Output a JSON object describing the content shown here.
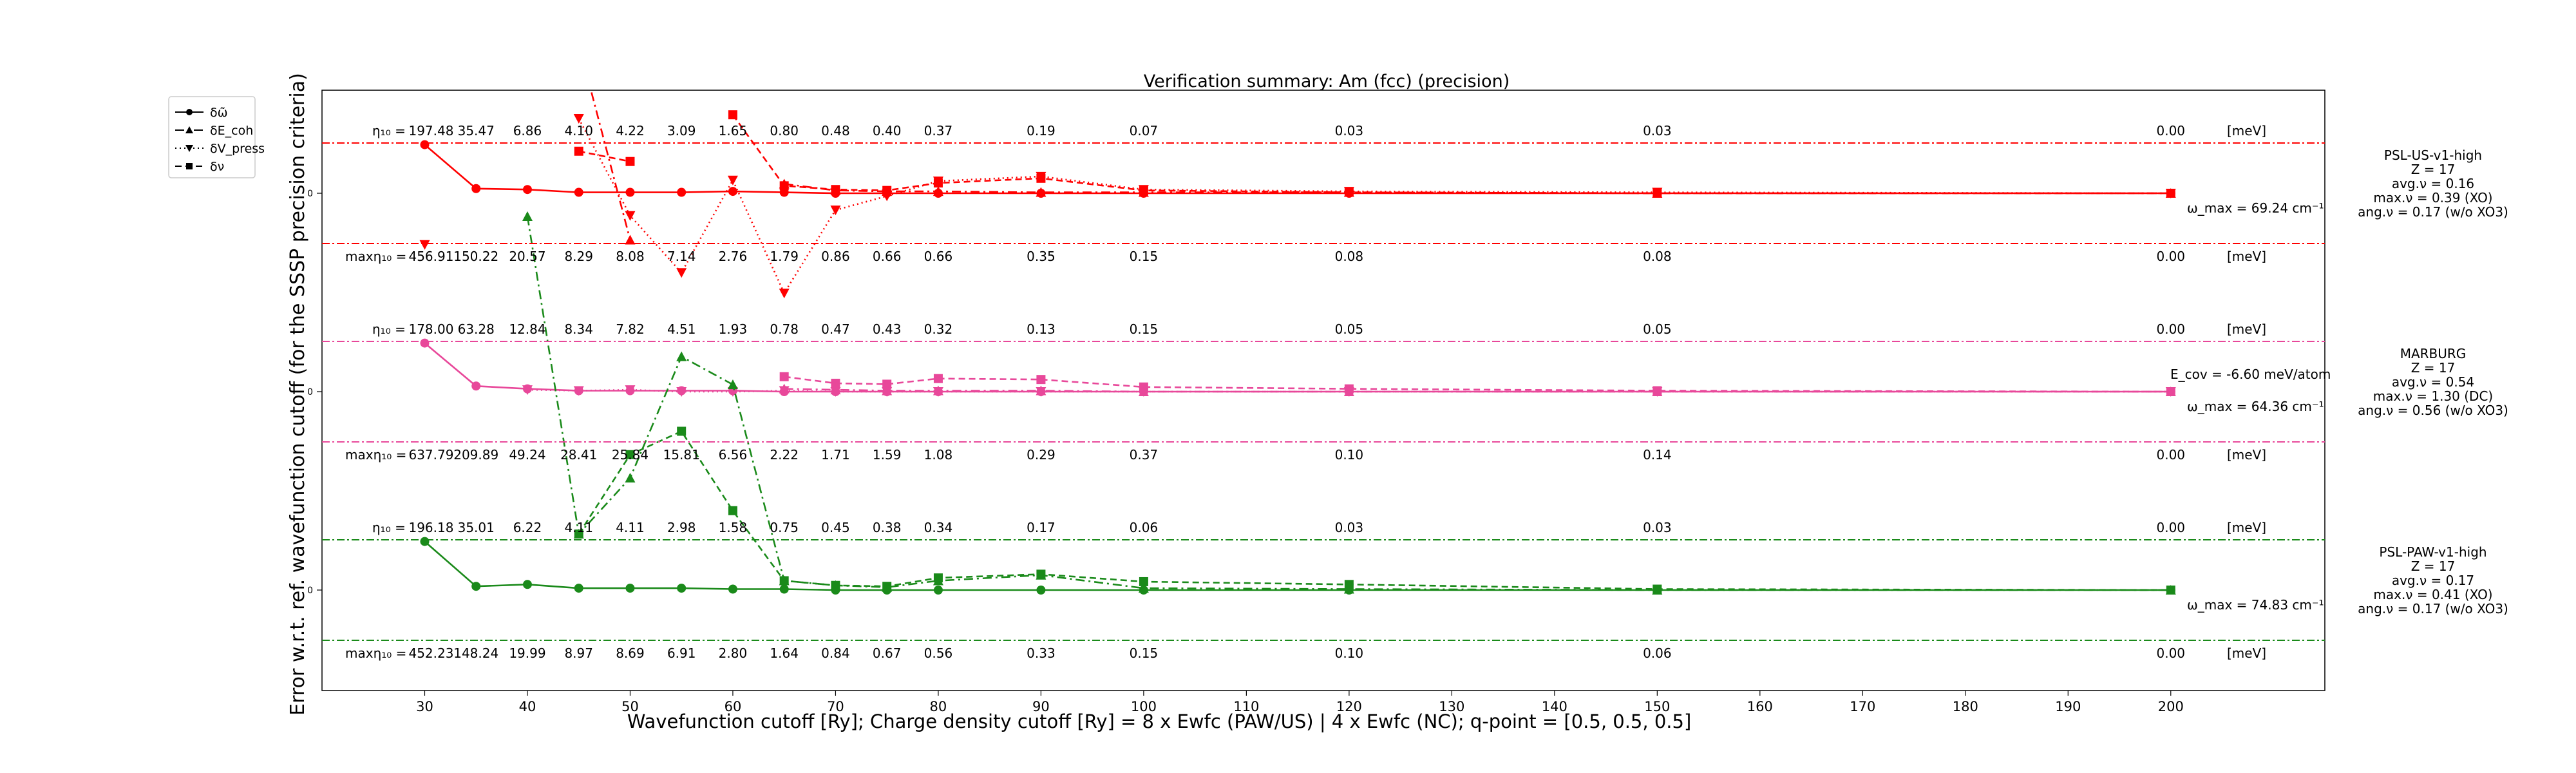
{
  "chart_data": {
    "type": "line",
    "title": "Verification summary: Am (fcc) (precision)",
    "xlabel": "Wavefunction cutoff [Ry]; Charge density cutoff [Ry] = 8 x Ewfc (PAW/US) | 4 x Ewfc (NC); q-point = [0.5, 0.5, 0.5]",
    "ylabel": "Error w.r.t. ref. wavefunction cutoff (for the SSSP precision criteria)",
    "xlim": [
      20,
      215
    ],
    "x_ticks": [
      30,
      40,
      50,
      60,
      70,
      80,
      90,
      100,
      110,
      120,
      130,
      140,
      150,
      160,
      170,
      180,
      190,
      200
    ],
    "y_tick_label": "0",
    "x": [
      30,
      35,
      40,
      45,
      50,
      55,
      60,
      65,
      70,
      75,
      80,
      90,
      100,
      120,
      150,
      200
    ],
    "legend": {
      "placement": "upper-left-outside",
      "entries": [
        {
          "label": "δω̃",
          "marker": "circle",
          "linestyle": "solid"
        },
        {
          "label": "δE_coh",
          "marker": "triangle",
          "linestyle": "dashdot"
        },
        {
          "label": "δV_press",
          "marker": "triangle-down",
          "linestyle": "dotted"
        },
        {
          "label": "δν",
          "marker": "square",
          "linestyle": "dashed"
        }
      ]
    },
    "groups": [
      {
        "name": "PSL-US-v1-high",
        "color": "#ff0000",
        "info": [
          "PSL-US-v1-high",
          "Z = 17",
          "avg.ν = 0.16",
          "max.ν = 0.39 (XO)",
          "ang.ν = 0.17 (w/o XO3)"
        ],
        "omega_label": "ω_max = 69.24 cm⁻¹",
        "ecov_label": "",
        "eta_prefix": "η₁₀ =",
        "eta_values": [
          "197.48",
          "35.47",
          "6.86",
          "4.10",
          "4.22",
          "3.09",
          "1.65",
          "0.80",
          "0.48",
          "0.40",
          "0.37",
          "0.19",
          "0.07",
          "0.03",
          "0.03",
          "0.00"
        ],
        "max_prefix": "maxη₁₀ =",
        "max_values": [
          "456.91",
          "150.22",
          "20.57",
          "8.29",
          "8.08",
          "7.14",
          "2.76",
          "1.79",
          "0.86",
          "0.66",
          "0.66",
          "0.35",
          "0.15",
          "0.08",
          "0.08",
          "0.00"
        ],
        "unit": "[meV]",
        "series": [
          {
            "name": "δω̃",
            "style": "solid",
            "marker": "circle",
            "values": [
              0.52,
              0.05,
              0.04,
              0.01,
              0.01,
              0.01,
              0.02,
              0.01,
              0.0,
              0.0,
              0.0,
              0.0,
              0.0,
              0.0,
              0.0,
              0.0
            ]
          },
          {
            "name": "δE_coh",
            "style": "dashdot",
            "marker": "triangle",
            "values": [
              null,
              null,
              4.0,
              1.6,
              -0.5,
              null,
              null,
              0.1,
              0.03,
              0.02,
              0.02,
              0.01,
              0.01,
              0.01,
              0.0,
              0.0
            ]
          },
          {
            "name": "δV_press",
            "style": "dotted",
            "marker": "triangle-down",
            "values": [
              -0.55,
              null,
              null,
              0.8,
              -0.24,
              -0.85,
              0.14,
              -1.07,
              -0.18,
              -0.03,
              0.13,
              0.18,
              0.04,
              0.02,
              0.01,
              0.0
            ]
          },
          {
            "name": "δν",
            "style": "dashed",
            "marker": "square",
            "values": [
              null,
              null,
              null,
              0.45,
              0.34,
              null,
              0.84,
              0.08,
              0.04,
              0.03,
              0.11,
              0.16,
              0.03,
              0.01,
              0.0,
              0.0
            ]
          }
        ]
      },
      {
        "name": "MARBURG",
        "color": "#e8489a",
        "info": [
          "MARBURG",
          "Z = 17",
          "avg.ν = 0.54",
          "max.ν = 1.30 (DC)",
          "ang.ν = 0.56 (w/o XO3)"
        ],
        "omega_label": "ω_max = 64.36 cm⁻¹",
        "ecov_label": "E_cov = -6.60 meV/atom",
        "eta_prefix": "η₁₀ =",
        "eta_values": [
          "178.00",
          "63.28",
          "12.84",
          "8.34",
          "7.82",
          "4.51",
          "1.93",
          "0.78",
          "0.47",
          "0.43",
          "0.32",
          "0.13",
          "0.15",
          "0.05",
          "0.05",
          "0.00"
        ],
        "max_prefix": "maxη₁₀ =",
        "max_values": [
          "637.79",
          "209.89",
          "49.24",
          "28.41",
          "25.84",
          "15.81",
          "6.56",
          "2.22",
          "1.71",
          "1.59",
          "1.08",
          "0.29",
          "0.37",
          "0.10",
          "0.14",
          "0.00"
        ],
        "unit": "[meV]",
        "series": [
          {
            "name": "δω̃",
            "style": "solid",
            "marker": "circle",
            "values": [
              0.52,
              0.06,
              0.03,
              0.01,
              0.01,
              0.01,
              0.01,
              0.0,
              0.0,
              0.0,
              0.0,
              0.0,
              0.0,
              0.0,
              0.0,
              0.0
            ]
          },
          {
            "name": "δE_coh",
            "style": "dashdot",
            "marker": "triangle",
            "values": [
              null,
              null,
              null,
              null,
              null,
              null,
              null,
              0.03,
              0.02,
              0.01,
              0.01,
              0.01,
              0.0,
              0.0,
              0.0,
              0.0
            ]
          },
          {
            "name": "δV_press",
            "style": "dotted",
            "marker": "triangle-down",
            "values": [
              null,
              null,
              0.02,
              0.01,
              0.02,
              0.0,
              0.0,
              0.01,
              0.0,
              0.0,
              0.0,
              0.0,
              0.0,
              0.0,
              0.0,
              0.0
            ]
          },
          {
            "name": "δν",
            "style": "dashed",
            "marker": "square",
            "values": [
              null,
              null,
              null,
              null,
              null,
              null,
              null,
              0.16,
              0.09,
              0.08,
              0.14,
              0.13,
              0.05,
              0.03,
              0.01,
              0.0
            ]
          }
        ]
      },
      {
        "name": "PSL-PAW-v1-high",
        "color": "#1a8a1a",
        "info": [
          "PSL-PAW-v1-high",
          "Z = 17",
          "avg.ν = 0.17",
          "max.ν = 0.41 (XO)",
          "ang.ν = 0.17 (w/o XO3)"
        ],
        "omega_label": "ω_max = 74.83 cm⁻¹",
        "ecov_label": "",
        "eta_prefix": "η₁₀ =",
        "eta_values": [
          "196.18",
          "35.01",
          "6.22",
          "4.11",
          "4.11",
          "2.98",
          "1.58",
          "0.75",
          "0.45",
          "0.38",
          "0.34",
          "0.17",
          "0.06",
          "0.03",
          "0.03",
          "0.00"
        ],
        "max_prefix": "maxη₁₀ =",
        "max_values": [
          "452.23",
          "148.24",
          "19.99",
          "8.97",
          "8.69",
          "6.91",
          "2.80",
          "1.64",
          "0.84",
          "0.67",
          "0.56",
          "0.33",
          "0.15",
          "0.10",
          "0.06",
          "0.00"
        ],
        "unit": "[meV]",
        "series": [
          {
            "name": "δω̃",
            "style": "solid",
            "marker": "circle",
            "values": [
              0.52,
              0.04,
              0.06,
              0.02,
              0.02,
              0.02,
              0.01,
              0.01,
              0.0,
              0.0,
              0.0,
              0.0,
              0.0,
              0.0,
              0.0,
              0.0
            ]
          },
          {
            "name": "δE_coh",
            "style": "dashdot",
            "marker": "triangle",
            "values": [
              null,
              null,
              4.0,
              0.6,
              1.2,
              2.5,
              2.2,
              0.1,
              0.05,
              0.03,
              0.1,
              0.16,
              0.02,
              0.01,
              0.0,
              0.0
            ]
          },
          {
            "name": "δV_press",
            "style": "dotted",
            "marker": "triangle-down",
            "values": [
              null,
              null,
              null,
              null,
              null,
              null,
              null,
              null,
              null,
              null,
              null,
              null,
              null,
              null,
              null,
              null
            ]
          },
          {
            "name": "δν",
            "style": "dashed",
            "marker": "square",
            "values": [
              null,
              null,
              null,
              0.6,
              1.45,
              1.7,
              0.85,
              0.1,
              0.05,
              0.04,
              0.13,
              0.17,
              0.09,
              0.06,
              0.01,
              0.0
            ]
          }
        ]
      }
    ]
  }
}
